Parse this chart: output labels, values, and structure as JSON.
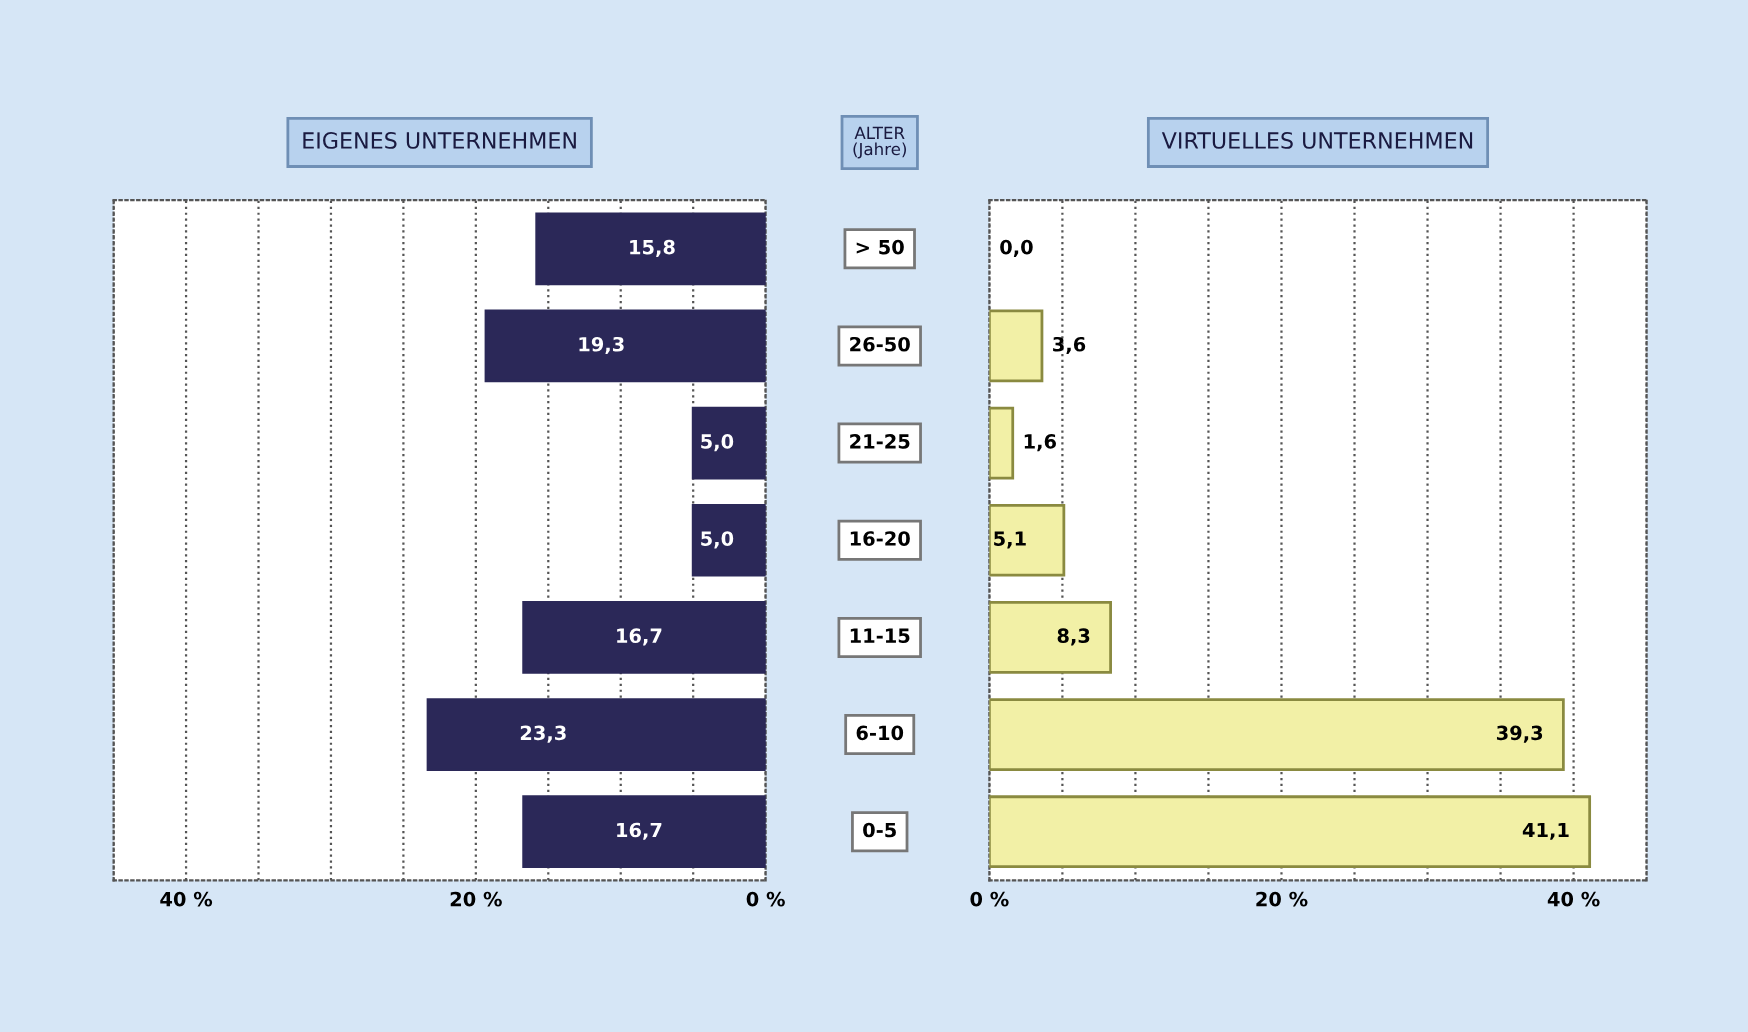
{
  "chart_data": [
    {
      "type": "bar",
      "orientation": "horizontal",
      "title": "EIGENES UNTERNEHMEN",
      "ylabel": "ALTER\n(Jahre)",
      "categories": [
        "> 50",
        "26-50",
        "21-25",
        "16-20",
        "11-15",
        "6-10",
        "0-5"
      ],
      "series": [
        {
          "color": "#2b2858",
          "values": [
            15.8,
            19.3,
            5.0,
            5.0,
            16.7,
            23.3,
            16.7
          ],
          "value_labels": [
            "15,8",
            "19,3",
            "5,0",
            "5,0",
            "16,7",
            "23,3",
            "16,7"
          ]
        }
      ],
      "xlim": [
        45,
        0
      ],
      "xticks": [
        {
          "value": 40,
          "label": "40 %"
        },
        {
          "value": 20,
          "label": "20 %"
        },
        {
          "value": 0,
          "label": "0 %"
        }
      ],
      "grid": "x"
    },
    {
      "type": "bar",
      "orientation": "horizontal",
      "title": "VIRTUELLES UNTERNEHMEN",
      "categories": [
        null,
        null,
        null,
        null,
        null,
        null,
        null
      ],
      "series": [
        {
          "color": "#f2f0a6",
          "values": [
            0.0,
            3.6,
            1.6,
            5.1,
            8.3,
            39.3,
            41.1
          ],
          "value_labels": [
            "0,0",
            "3,6",
            "1,6",
            "5,1",
            "8,3",
            "39,3",
            "41,1"
          ]
        }
      ],
      "xlim": [
        0,
        45
      ],
      "xticks": [
        {
          "value": 0,
          "label": "0 %"
        },
        {
          "value": 20,
          "label": "20 %"
        },
        {
          "value": 40,
          "label": "40 %"
        }
      ],
      "grid": "x"
    }
  ]
}
